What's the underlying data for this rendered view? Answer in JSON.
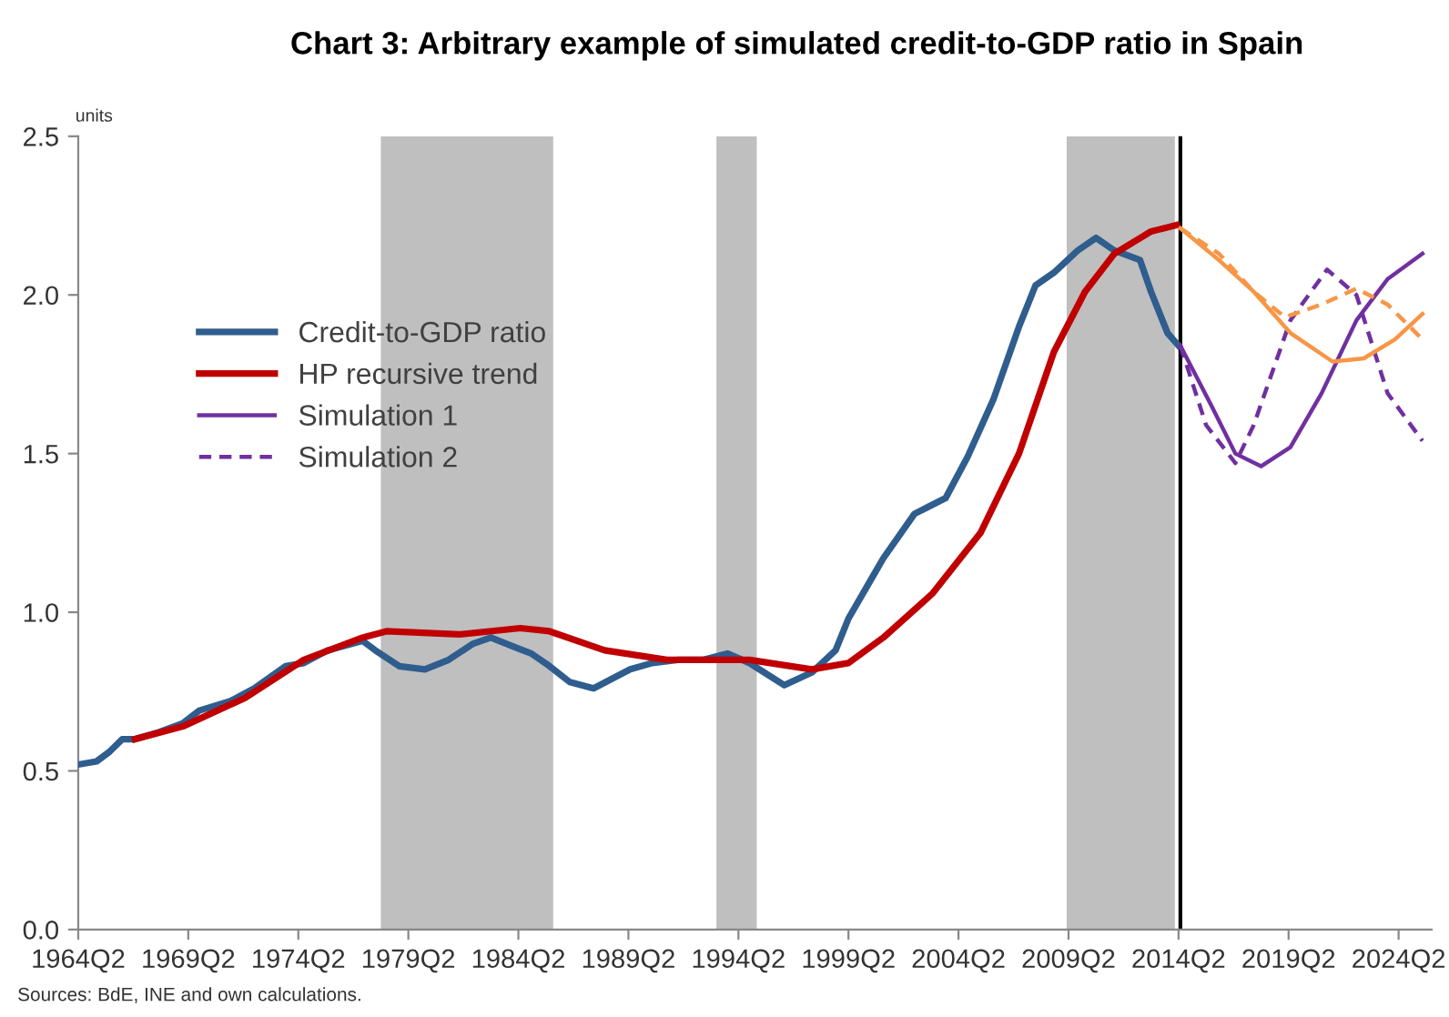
{
  "chart_data": {
    "type": "line",
    "title": "Chart 3: Arbitrary example of simulated credit-to-GDP ratio in Spain",
    "ylabel": "units",
    "annotations": [
      "Sources: BdE, INE and own calculations."
    ],
    "xlim": [
      "1964-04",
      "2025-10"
    ],
    "xticks": [
      {
        "value": "1964-04",
        "label": "1964Q2"
      },
      {
        "value": "1969-04",
        "label": "1969Q2"
      },
      {
        "value": "1974-04",
        "label": "1974Q2"
      },
      {
        "value": "1979-04",
        "label": "1979Q2"
      },
      {
        "value": "1984-04",
        "label": "1984Q2"
      },
      {
        "value": "1989-04",
        "label": "1989Q2"
      },
      {
        "value": "1994-04",
        "label": "1994Q2"
      },
      {
        "value": "1999-04",
        "label": "1999Q2"
      },
      {
        "value": "2004-04",
        "label": "2004Q2"
      },
      {
        "value": "2009-04",
        "label": "2009Q2"
      },
      {
        "value": "2014-04",
        "label": "2014Q2"
      },
      {
        "value": "2019-04",
        "label": "2019Q2"
      },
      {
        "value": "2024-04",
        "label": "2024Q2"
      }
    ],
    "ylim": [
      0,
      2.5
    ],
    "yticks": [
      {
        "value": 0,
        "label": "0.0"
      },
      {
        "value": 0.5,
        "label": "0.5"
      },
      {
        "value": 1.0,
        "label": "1.0"
      },
      {
        "value": 1.5,
        "label": "1.5"
      },
      {
        "value": 2.0,
        "label": "2.0"
      },
      {
        "value": 2.5,
        "label": "2.5"
      }
    ],
    "grid": false,
    "legend": "top left",
    "bands": [
      {
        "axis": "x",
        "from": "1978-01",
        "to": "1985-11",
        "color": "#bfbfbf"
      },
      {
        "axis": "x",
        "from": "1993-04",
        "to": "1995-02",
        "color": "#bfbfbf"
      },
      {
        "axis": "x",
        "from": "2009-03",
        "to": "2014-02",
        "color": "#bfbfbf"
      }
    ],
    "ref_lines": [
      {
        "axis": "x",
        "value": "2014-05",
        "color": "#000000",
        "line_style": "solid"
      }
    ],
    "series": [
      {
        "name": "Credit-to-GDP ratio",
        "color": "#2f5d8e",
        "line_style": "solid",
        "x": [
          "1964-04",
          "1965-02",
          "1965-09",
          "1966-04",
          "1966-11",
          "1967-11",
          "1969-01",
          "1969-10",
          "1971-03",
          "1972-04",
          "1973-09",
          "1974-07",
          "1975-08",
          "1977-03",
          "1977-10",
          "1978-11",
          "1980-01",
          "1981-02",
          "1982-03",
          "1983-01",
          "1984-02",
          "1984-11",
          "1985-09",
          "1986-08",
          "1987-09",
          "1988-07",
          "1989-05",
          "1990-05",
          "1991-07",
          "1992-09",
          "1993-10",
          "1994-10",
          "1996-05",
          "1997-08",
          "1998-09",
          "1999-04",
          "2000-05",
          "2000-11",
          "2002-04",
          "2003-09",
          "2004-09",
          "2005-11",
          "2007-01",
          "2007-10",
          "2008-08",
          "2009-09",
          "2010-07",
          "2011-05",
          "2012-07",
          "2013-01",
          "2013-10",
          "2014-04"
        ],
        "values": [
          0.52,
          0.53,
          0.56,
          0.6,
          0.6,
          0.62,
          0.65,
          0.69,
          0.72,
          0.76,
          0.83,
          0.84,
          0.88,
          0.91,
          0.88,
          0.83,
          0.82,
          0.85,
          0.9,
          0.92,
          0.89,
          0.87,
          0.83,
          0.78,
          0.76,
          0.79,
          0.82,
          0.84,
          0.85,
          0.85,
          0.87,
          0.84,
          0.77,
          0.81,
          0.88,
          0.98,
          1.11,
          1.17,
          1.31,
          1.36,
          1.49,
          1.67,
          1.9,
          2.03,
          2.07,
          2.14,
          2.18,
          2.14,
          2.11,
          2.01,
          1.88,
          1.84
        ]
      },
      {
        "name": "HP recursive trend",
        "color": "#c00000",
        "line_style": "solid",
        "x": [
          "1966-11",
          "1969-01",
          "1971-11",
          "1974-07",
          "1977-03",
          "1978-04",
          "1981-08",
          "1984-05",
          "1985-09",
          "1988-03",
          "1991-01",
          "1993-10",
          "1994-10",
          "1997-08",
          "1999-04",
          "2000-11",
          "2003-02",
          "2005-04",
          "2007-01",
          "2008-08",
          "2010-01",
          "2011-05",
          "2013-01",
          "2014-03"
        ],
        "values": [
          0.6,
          0.64,
          0.73,
          0.85,
          0.92,
          0.94,
          0.93,
          0.95,
          0.94,
          0.88,
          0.85,
          0.85,
          0.85,
          0.82,
          0.84,
          0.92,
          1.06,
          1.25,
          1.5,
          1.82,
          2.01,
          2.13,
          2.2,
          2.22
        ]
      },
      {
        "name": "Simulation 1",
        "color": "#7030a0",
        "line_style": "solid",
        "x": [
          "2014-05",
          "2015-10",
          "2016-11",
          "2018-01",
          "2019-05",
          "2020-10",
          "2022-05",
          "2023-10",
          "2025-05"
        ],
        "values": [
          1.84,
          1.65,
          1.5,
          1.46,
          1.52,
          1.69,
          1.92,
          2.05,
          2.13
        ]
      },
      {
        "name": "Simulation 2",
        "color": "#7030a0",
        "line_style": "dashed",
        "x": [
          "2014-05",
          "2015-07",
          "2016-11",
          "2017-09",
          "2019-05",
          "2021-01",
          "2022-05",
          "2023-10",
          "2025-05"
        ],
        "values": [
          1.84,
          1.59,
          1.47,
          1.59,
          1.92,
          2.08,
          2.0,
          1.69,
          1.54
        ]
      },
      {
        "color": "#f79646",
        "line_style": "solid",
        "x": [
          "2014-05",
          "2016-02",
          "2017-09",
          "2019-05",
          "2021-04",
          "2022-09",
          "2024-02",
          "2025-05"
        ],
        "values": [
          2.21,
          2.11,
          2.01,
          1.88,
          1.79,
          1.8,
          1.86,
          1.94
        ]
      },
      {
        "color": "#f79646",
        "line_style": "dashed",
        "x": [
          "2014-05",
          "2016-02",
          "2017-09",
          "2019-02",
          "2020-10",
          "2022-05",
          "2023-10",
          "2025-05"
        ],
        "values": [
          2.21,
          2.13,
          2.01,
          1.93,
          1.97,
          2.02,
          1.97,
          1.86
        ]
      }
    ]
  }
}
